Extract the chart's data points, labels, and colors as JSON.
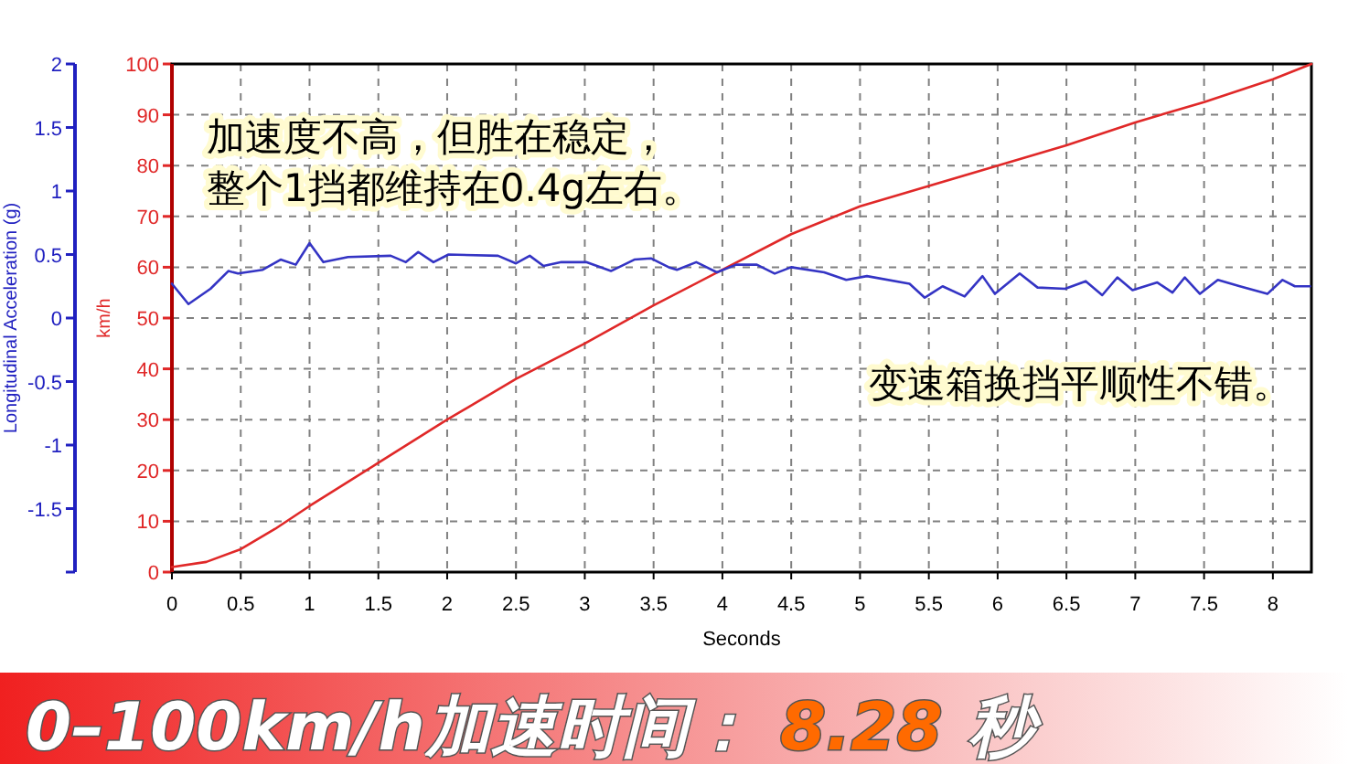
{
  "chart_data": {
    "type": "line",
    "xlabel": "Seconds",
    "ylabel": "km/h",
    "y2label": "Longitudinal Acceleration (g)",
    "xlim": [
      0,
      8.28
    ],
    "xticks": [
      0,
      0.5,
      1,
      1.5,
      2,
      2.5,
      3,
      3.5,
      4,
      4.5,
      5,
      5.5,
      6,
      6.5,
      7,
      7.5,
      8
    ],
    "ylim": [
      0,
      100
    ],
    "yticks": [
      0,
      10,
      20,
      30,
      40,
      50,
      60,
      70,
      80,
      90,
      100
    ],
    "y2lim": [
      -2,
      2
    ],
    "y2ticks": [
      {
        "value": -2,
        "label": null
      },
      -1.5,
      -1,
      -0.5,
      0,
      0.5,
      1,
      1.5,
      2
    ],
    "grid": true,
    "line_style": "solid",
    "marker": "none",
    "series": [
      {
        "color": "#e02828",
        "x": [
          0,
          0.25,
          0.5,
          0.75,
          1,
          1.5,
          2,
          2.5,
          3,
          3.5,
          4,
          4.5,
          5,
          5.5,
          6,
          6.5,
          7,
          7.5,
          8,
          8.28
        ],
        "values": [
          1,
          2,
          4.5,
          8.5,
          13,
          21.5,
          30,
          38,
          45,
          52.5,
          59.5,
          66.5,
          72,
          76,
          80,
          84,
          88.5,
          92.5,
          97,
          100
        ]
      },
      {
        "color": "#3434c4",
        "axis": "y2",
        "x": [
          0,
          0.12,
          0.28,
          0.41,
          0.48,
          0.66,
          0.79,
          0.9,
          1.0,
          1.1,
          1.28,
          1.59,
          1.7,
          1.79,
          1.9,
          2.01,
          2.37,
          2.5,
          2.6,
          2.7,
          2.83,
          3.01,
          3.19,
          3.36,
          3.48,
          3.61,
          3.67,
          3.81,
          3.96,
          4.1,
          4.25,
          4.38,
          4.5,
          4.74,
          4.9,
          5.05,
          5.36,
          5.47,
          5.6,
          5.76,
          5.89,
          5.98,
          6.16,
          6.29,
          6.49,
          6.64,
          6.76,
          6.87,
          6.98,
          7.16,
          7.27,
          7.36,
          7.47,
          7.6,
          7.76,
          7.96,
          8.07,
          8.16,
          8.27
        ],
        "values": [
          0.27,
          0.11,
          0.23,
          0.37,
          0.35,
          0.38,
          0.46,
          0.42,
          0.59,
          0.44,
          0.48,
          0.49,
          0.44,
          0.52,
          0.44,
          0.5,
          0.49,
          0.43,
          0.49,
          0.41,
          0.44,
          0.44,
          0.37,
          0.46,
          0.47,
          0.4,
          0.38,
          0.44,
          0.36,
          0.42,
          0.42,
          0.35,
          0.4,
          0.36,
          0.3,
          0.33,
          0.27,
          0.16,
          0.25,
          0.17,
          0.33,
          0.19,
          0.35,
          0.24,
          0.23,
          0.29,
          0.18,
          0.32,
          0.22,
          0.28,
          0.2,
          0.32,
          0.19,
          0.3,
          0.25,
          0.19,
          0.3,
          0.25,
          0.25
        ]
      }
    ],
    "annotations": [
      "加速度不高，但胜在稳定，",
      "整个1挡都维持在0.4g左右。",
      "变速箱换挡平顺性不错。",
      "0–100km/h加速时间：",
      "8.28",
      "秒"
    ]
  }
}
